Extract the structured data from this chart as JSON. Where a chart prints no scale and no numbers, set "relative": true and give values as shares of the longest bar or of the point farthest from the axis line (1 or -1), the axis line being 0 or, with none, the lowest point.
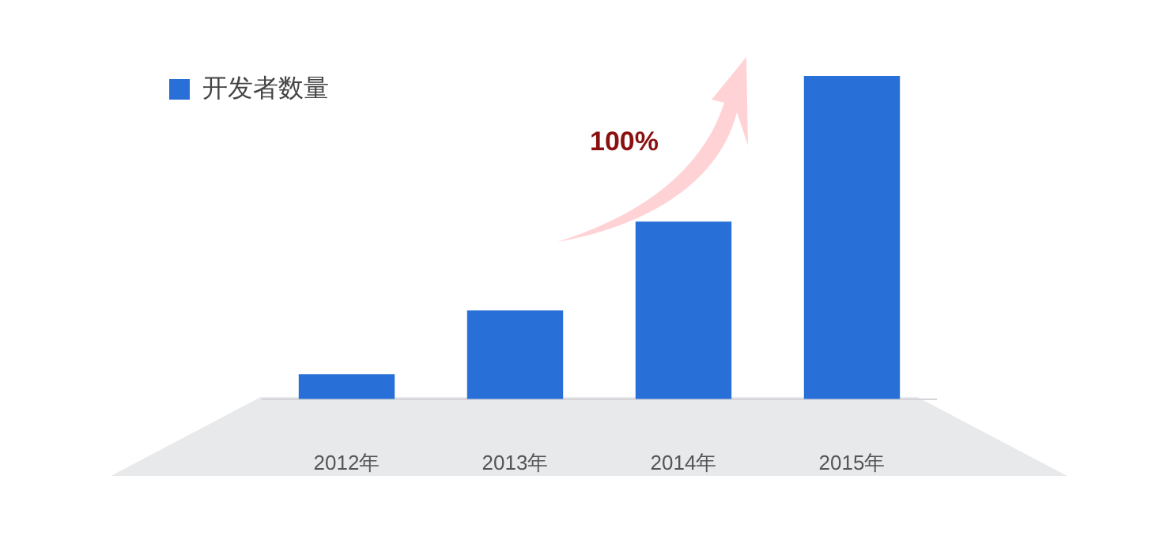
{
  "chart_data": {
    "type": "bar",
    "relative": true,
    "categories": [
      "2012年",
      "2013年",
      "2014年",
      "2015年"
    ],
    "series": [
      {
        "name": "开发者数量",
        "color": "#2870d8",
        "values": [
          0.077,
          0.275,
          0.549,
          1
        ]
      }
    ],
    "annotations": [
      "100%"
    ],
    "legend": "top left",
    "grid": false
  }
}
